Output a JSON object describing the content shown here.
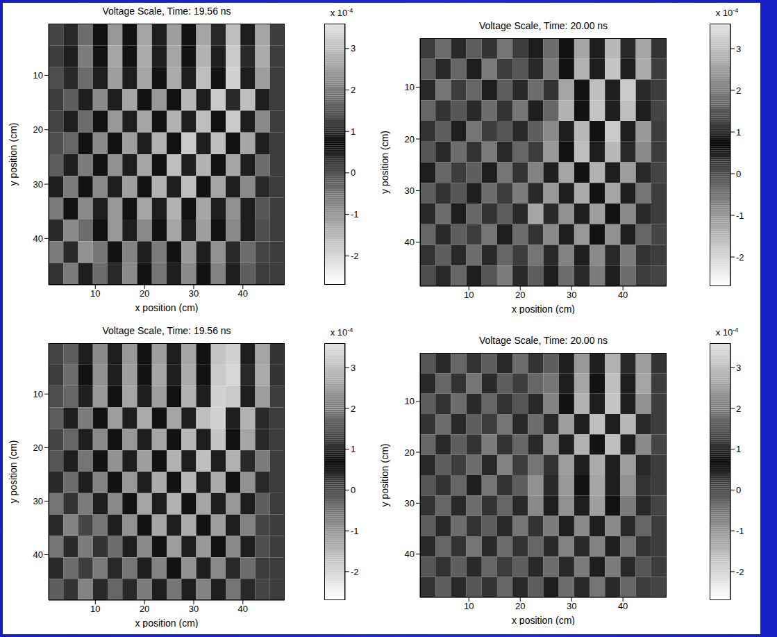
{
  "chart_data": [
    {
      "type": "heatmap",
      "title": "Voltage Scale, Time: 19.56 ns",
      "xlabel": "x position (cm)",
      "ylabel": "y position (cm)",
      "xlim": [
        0.5,
        48.5
      ],
      "ylim": [
        0.5,
        48.5
      ],
      "xticks": [
        10,
        20,
        30,
        40
      ],
      "yticks": [
        10,
        20,
        30,
        40
      ],
      "x_centers": [
        2,
        5,
        8,
        11,
        14,
        17,
        20,
        23,
        26,
        29,
        32,
        35,
        38,
        41,
        44,
        47
      ],
      "y_centers": [
        2.5,
        6.5,
        10.5,
        14.5,
        18.5,
        22.5,
        26.5,
        30.5,
        34.5,
        38.5,
        42.5,
        46.5
      ],
      "cells": [
        [
          1.3,
          1.0,
          1.8,
          0.8,
          2.4,
          0.8,
          2.6,
          0.9,
          2.5,
          0.8,
          2.6,
          1.0,
          3.0,
          0.9,
          2.6,
          1.2
        ],
        [
          1.2,
          0.9,
          2.0,
          0.8,
          2.6,
          0.8,
          2.7,
          0.9,
          2.6,
          0.8,
          2.8,
          0.9,
          3.2,
          1.0,
          2.7,
          1.2
        ],
        [
          1.4,
          1.0,
          1.8,
          0.9,
          2.5,
          0.9,
          2.6,
          0.8,
          2.7,
          0.9,
          3.0,
          0.8,
          3.3,
          0.9,
          2.5,
          1.2
        ],
        [
          1.2,
          1.6,
          0.9,
          2.2,
          0.9,
          2.6,
          0.8,
          2.4,
          0.8,
          2.9,
          0.9,
          3.2,
          1.0,
          3.0,
          0.9,
          1.2
        ],
        [
          1.3,
          0.9,
          1.8,
          0.8,
          2.4,
          0.9,
          2.6,
          0.8,
          2.8,
          0.9,
          3.0,
          0.8,
          3.2,
          0.9,
          2.2,
          1.2
        ],
        [
          1.4,
          1.7,
          0.8,
          2.2,
          0.8,
          2.5,
          0.9,
          2.8,
          0.8,
          3.2,
          0.9,
          3.0,
          0.8,
          2.6,
          0.9,
          1.2
        ],
        [
          1.6,
          0.9,
          2.0,
          0.8,
          2.3,
          0.9,
          2.6,
          0.8,
          3.0,
          0.9,
          2.8,
          0.8,
          2.6,
          0.9,
          1.8,
          1.2
        ],
        [
          0.9,
          2.0,
          0.8,
          2.2,
          0.9,
          2.5,
          0.8,
          2.8,
          0.9,
          3.0,
          0.8,
          2.6,
          0.9,
          2.2,
          1.0,
          1.2
        ],
        [
          2.0,
          0.8,
          2.2,
          0.9,
          2.4,
          0.8,
          2.6,
          0.9,
          2.8,
          0.8,
          2.6,
          0.9,
          2.3,
          0.9,
          1.5,
          1.2
        ],
        [
          1.0,
          2.2,
          1.8,
          0.8,
          2.4,
          0.9,
          2.2,
          0.8,
          2.6,
          0.9,
          2.5,
          0.8,
          2.2,
          0.9,
          1.4,
          1.2
        ],
        [
          2.0,
          1.0,
          2.3,
          1.9,
          0.8,
          2.1,
          0.9,
          2.0,
          0.8,
          2.4,
          0.9,
          2.3,
          1.0,
          1.8,
          1.3,
          1.2
        ],
        [
          1.1,
          2.0,
          0.9,
          1.8,
          1.0,
          2.2,
          0.8,
          1.9,
          0.9,
          2.2,
          0.8,
          2.1,
          0.9,
          1.6,
          1.2,
          1.2
        ]
      ],
      "colorbar": {
        "range": [
          -2.7,
          3.6
        ],
        "ticks": [
          -2,
          -1,
          0,
          1,
          2,
          3
        ],
        "dark_at": 0.7,
        "multiplier": "x 10",
        "exponent": "-4"
      }
    },
    {
      "type": "heatmap",
      "title": "Voltage Scale, Time: 20.00 ns",
      "xlabel": "x position (cm)",
      "ylabel": "y position (cm)",
      "xlim": [
        0.5,
        48.5
      ],
      "ylim": [
        0.5,
        48.5
      ],
      "xticks": [
        10,
        20,
        30,
        40
      ],
      "yticks": [
        10,
        20,
        30,
        40
      ],
      "x_centers": [
        2,
        5,
        8,
        11,
        14,
        17,
        20,
        23,
        26,
        29,
        32,
        35,
        38,
        41,
        44,
        47
      ],
      "y_centers": [
        2.5,
        6.5,
        10.5,
        14.5,
        18.5,
        22.5,
        26.5,
        30.5,
        34.5,
        38.5,
        42.5,
        46.5
      ],
      "cells": [
        [
          1.2,
          1.8,
          1.0,
          1.6,
          1.1,
          1.9,
          1.2,
          0.9,
          1.8,
          0.8,
          2.6,
          0.9,
          2.9,
          1.0,
          2.6,
          1.1
        ],
        [
          1.6,
          1.0,
          1.7,
          0.9,
          2.0,
          1.2,
          1.5,
          1.0,
          2.0,
          0.8,
          2.8,
          0.9,
          3.1,
          0.9,
          2.7,
          1.2
        ],
        [
          1.0,
          1.9,
          1.2,
          1.7,
          0.9,
          1.6,
          1.0,
          1.8,
          1.1,
          2.6,
          0.8,
          3.0,
          0.9,
          3.2,
          1.0,
          1.2
        ],
        [
          1.7,
          1.1,
          1.5,
          1.0,
          1.8,
          1.1,
          1.9,
          0.9,
          1.7,
          2.8,
          0.8,
          3.1,
          0.9,
          3.0,
          0.9,
          1.3
        ],
        [
          1.1,
          1.6,
          0.9,
          1.9,
          1.2,
          1.5,
          1.0,
          1.6,
          2.2,
          0.9,
          2.9,
          0.8,
          3.2,
          0.9,
          2.4,
          1.2
        ],
        [
          1.5,
          1.0,
          1.8,
          1.1,
          2.0,
          1.0,
          1.7,
          1.2,
          2.4,
          0.8,
          3.0,
          0.9,
          2.9,
          1.0,
          2.2,
          1.2
        ],
        [
          0.9,
          1.7,
          1.2,
          1.6,
          0.9,
          1.9,
          1.1,
          2.1,
          0.9,
          2.6,
          0.8,
          2.8,
          0.9,
          2.5,
          1.0,
          1.3
        ],
        [
          1.6,
          1.1,
          1.5,
          0.9,
          1.8,
          1.2,
          2.0,
          1.0,
          2.4,
          0.9,
          2.7,
          0.8,
          2.6,
          0.9,
          1.9,
          1.2
        ],
        [
          1.0,
          1.8,
          0.9,
          1.7,
          1.1,
          1.6,
          1.0,
          2.6,
          1.0,
          2.3,
          0.9,
          2.5,
          0.8,
          2.2,
          1.0,
          1.2
        ],
        [
          1.7,
          1.0,
          1.6,
          1.2,
          1.9,
          0.9,
          1.8,
          1.1,
          2.2,
          0.9,
          2.4,
          0.8,
          2.3,
          0.9,
          1.7,
          1.3
        ],
        [
          1.1,
          1.6,
          1.0,
          1.8,
          1.0,
          1.7,
          1.2,
          1.9,
          1.0,
          2.1,
          0.9,
          2.2,
          1.0,
          2.0,
          1.1,
          1.2
        ],
        [
          1.4,
          1.0,
          1.7,
          0.9,
          1.5,
          2.0,
          1.0,
          1.6,
          0.9,
          1.8,
          1.0,
          2.0,
          0.9,
          1.8,
          1.2,
          1.3
        ]
      ],
      "colorbar": {
        "range": [
          -2.7,
          3.6
        ],
        "ticks": [
          -2,
          -1,
          0,
          1,
          2,
          3
        ],
        "dark_at": 0.7,
        "multiplier": "x 10",
        "exponent": "-4"
      }
    },
    {
      "type": "heatmap",
      "title": "Voltage Scale, Time: 19.56 ns",
      "xlabel": "x position (cm)",
      "ylabel": "y position (cm)",
      "xlim": [
        0.5,
        48.5
      ],
      "ylim": [
        0.5,
        48.5
      ],
      "xticks": [
        10,
        20,
        30,
        40
      ],
      "yticks": [
        10,
        20,
        30,
        40
      ],
      "x_centers": [
        2,
        5,
        8,
        11,
        14,
        17,
        20,
        23,
        26,
        29,
        32,
        35,
        38,
        41,
        44,
        47
      ],
      "y_centers": [
        2.5,
        6.5,
        10.5,
        14.5,
        18.5,
        22.5,
        26.5,
        30.5,
        34.5,
        38.5,
        42.5,
        46.5
      ],
      "cells": [
        [
          1.3,
          1.6,
          0.9,
          2.2,
          0.9,
          2.4,
          0.8,
          2.5,
          0.9,
          2.6,
          0.8,
          3.1,
          3.3,
          0.9,
          2.6,
          1.1
        ],
        [
          1.2,
          1.8,
          0.8,
          2.3,
          0.9,
          2.5,
          0.8,
          2.6,
          0.9,
          2.7,
          0.8,
          3.2,
          3.4,
          1.0,
          2.7,
          1.1
        ],
        [
          1.4,
          1.7,
          0.9,
          2.4,
          0.8,
          2.6,
          0.9,
          2.5,
          0.8,
          2.8,
          0.9,
          3.3,
          3.2,
          0.9,
          2.5,
          1.2
        ],
        [
          1.6,
          0.9,
          2.0,
          0.8,
          2.5,
          0.9,
          2.7,
          0.8,
          2.6,
          0.9,
          3.0,
          3.3,
          0.9,
          2.8,
          1.0,
          1.2
        ],
        [
          1.3,
          1.7,
          0.9,
          2.2,
          0.8,
          2.4,
          0.9,
          2.6,
          0.8,
          2.9,
          0.9,
          3.1,
          0.8,
          2.6,
          1.0,
          1.2
        ],
        [
          1.5,
          0.9,
          1.9,
          0.8,
          2.3,
          0.9,
          2.5,
          0.8,
          2.8,
          0.9,
          3.0,
          0.9,
          2.8,
          1.0,
          2.0,
          1.2
        ],
        [
          1.0,
          1.8,
          0.9,
          2.1,
          0.8,
          2.4,
          0.9,
          2.7,
          0.8,
          2.9,
          0.9,
          2.7,
          0.8,
          2.3,
          1.0,
          1.2
        ],
        [
          1.9,
          1.1,
          2.0,
          0.9,
          2.2,
          0.8,
          2.6,
          0.9,
          2.8,
          0.8,
          2.6,
          0.9,
          2.4,
          0.9,
          1.6,
          1.2
        ],
        [
          1.0,
          2.1,
          1.3,
          1.9,
          0.9,
          2.3,
          0.8,
          2.6,
          0.9,
          2.7,
          0.8,
          2.5,
          0.9,
          2.1,
          1.3,
          1.2
        ],
        [
          1.9,
          1.0,
          2.0,
          1.1,
          1.8,
          0.9,
          2.2,
          0.8,
          2.5,
          0.9,
          2.4,
          0.8,
          2.2,
          0.9,
          1.4,
          1.2
        ],
        [
          1.0,
          1.8,
          1.2,
          2.0,
          1.0,
          1.9,
          0.9,
          2.1,
          0.8,
          2.3,
          0.9,
          2.2,
          1.0,
          1.8,
          1.2,
          1.2
        ],
        [
          1.6,
          1.1,
          2.1,
          1.0,
          1.7,
          1.0,
          2.0,
          0.9,
          1.9,
          0.9,
          2.1,
          0.9,
          1.9,
          1.0,
          1.3,
          1.2
        ]
      ],
      "colorbar": {
        "range": [
          -2.7,
          3.6
        ],
        "ticks": [
          -2,
          -1,
          0,
          1,
          2,
          3
        ],
        "dark_at": 0.7,
        "multiplier": "x 10",
        "exponent": "-4"
      }
    },
    {
      "type": "heatmap",
      "title": "Voltage Scale, Time: 20.00 ns",
      "xlabel": "x position (cm)",
      "ylabel": "y position (cm)",
      "xlim": [
        0.5,
        48.5
      ],
      "ylim": [
        0.5,
        48.5
      ],
      "xticks": [
        10,
        20,
        30,
        40
      ],
      "yticks": [
        10,
        20,
        30,
        40
      ],
      "x_centers": [
        2,
        5,
        8,
        11,
        14,
        17,
        20,
        23,
        26,
        29,
        32,
        35,
        38,
        41,
        44,
        47
      ],
      "y_centers": [
        2.5,
        6.5,
        10.5,
        14.5,
        18.5,
        22.5,
        26.5,
        30.5,
        34.5,
        38.5,
        42.5,
        46.5
      ],
      "cells": [
        [
          1.5,
          1.0,
          1.7,
          1.1,
          1.6,
          1.0,
          1.8,
          1.1,
          1.6,
          0.9,
          2.4,
          0.9,
          2.8,
          1.0,
          2.5,
          1.1
        ],
        [
          1.0,
          1.7,
          1.1,
          1.9,
          1.0,
          1.6,
          1.2,
          1.7,
          1.9,
          0.9,
          2.6,
          0.8,
          3.0,
          0.9,
          2.6,
          1.2
        ],
        [
          1.6,
          1.1,
          1.8,
          1.0,
          1.7,
          1.1,
          1.5,
          1.0,
          2.1,
          0.8,
          2.8,
          0.9,
          3.1,
          0.9,
          2.3,
          1.2
        ],
        [
          1.1,
          1.8,
          1.0,
          1.6,
          1.2,
          1.9,
          1.0,
          1.8,
          1.0,
          2.5,
          0.9,
          3.0,
          0.9,
          2.9,
          1.0,
          1.2
        ],
        [
          1.7,
          1.0,
          1.6,
          1.1,
          2.0,
          1.1,
          1.7,
          1.0,
          2.3,
          0.9,
          2.8,
          0.8,
          3.0,
          0.9,
          2.2,
          1.3
        ],
        [
          1.0,
          1.6,
          1.2,
          1.8,
          1.0,
          2.1,
          1.2,
          1.9,
          1.1,
          2.5,
          0.9,
          2.7,
          0.9,
          2.5,
          1.0,
          1.2
        ],
        [
          1.5,
          1.1,
          1.7,
          0.9,
          1.9,
          1.1,
          1.6,
          2.3,
          1.0,
          2.4,
          0.8,
          2.6,
          0.9,
          2.3,
          1.1,
          1.2
        ],
        [
          1.1,
          1.7,
          1.0,
          1.8,
          1.1,
          1.7,
          1.0,
          2.2,
          0.9,
          2.3,
          0.9,
          2.5,
          0.8,
          2.0,
          1.0,
          1.3
        ],
        [
          1.6,
          1.0,
          1.8,
          1.1,
          1.6,
          1.0,
          1.9,
          1.1,
          2.0,
          0.9,
          2.2,
          0.9,
          2.2,
          1.0,
          1.7,
          1.2
        ],
        [
          1.0,
          1.7,
          1.1,
          1.9,
          1.0,
          1.8,
          1.1,
          1.7,
          1.0,
          2.1,
          1.0,
          2.1,
          0.9,
          1.9,
          1.1,
          1.2
        ],
        [
          1.5,
          1.1,
          1.6,
          1.0,
          1.7,
          1.2,
          1.6,
          1.0,
          1.8,
          1.0,
          2.0,
          0.9,
          2.0,
          1.0,
          1.5,
          1.2
        ],
        [
          1.1,
          1.6,
          1.0,
          1.5,
          1.1,
          1.7,
          1.0,
          1.6,
          0.9,
          1.8,
          1.0,
          1.9,
          1.0,
          1.7,
          1.2,
          1.3
        ]
      ],
      "colorbar": {
        "range": [
          -2.7,
          3.6
        ],
        "ticks": [
          -2,
          -1,
          0,
          1,
          2,
          3
        ],
        "dark_at": 0.7,
        "multiplier": "x 10",
        "exponent": "-4"
      }
    }
  ]
}
